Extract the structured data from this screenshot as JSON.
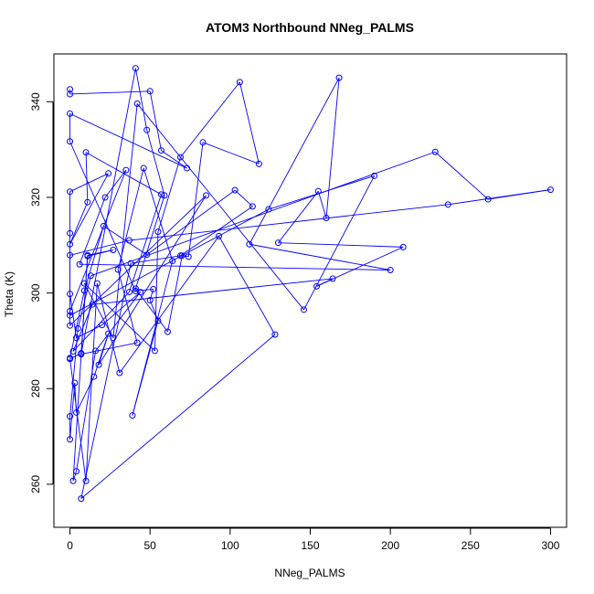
{
  "chart_data": {
    "type": "scatter",
    "title": "ATOM3 Northbound NNeg_PALMS",
    "xlabel": "NNeg_PALMS",
    "ylabel": "Theta (K)",
    "xlim": [
      -10,
      310
    ],
    "ylim": [
      251,
      350
    ],
    "x_ticks": [
      0,
      50,
      100,
      150,
      200,
      250,
      300
    ],
    "y_ticks": [
      260,
      280,
      300,
      320,
      340
    ],
    "grid": false,
    "legend": "none",
    "colors": {
      "series": "#0000ff",
      "axis": "#000000",
      "background": "#ffffff"
    },
    "series": [
      {
        "draw": "lines+points",
        "points": [
          [
            0,
            342.6
          ],
          [
            0,
            341.6
          ],
          [
            50,
            342.2
          ],
          [
            57,
            329.8
          ],
          [
            73,
            326.1
          ],
          [
            0,
            337.5
          ],
          [
            0,
            331.7
          ],
          [
            41,
            300.4
          ],
          [
            52,
            300.8
          ],
          [
            50,
            298.5
          ],
          [
            55,
            294.2
          ],
          [
            39,
            274.4
          ],
          [
            64,
            306.7
          ],
          [
            46,
            326.1
          ],
          [
            30,
            304.9
          ],
          [
            42,
            289.6
          ],
          [
            7,
            287.2
          ],
          [
            41,
            347.0
          ],
          [
            48,
            334.1
          ],
          [
            59,
            320.4
          ],
          [
            41,
            300.9
          ],
          [
            61,
            291.9
          ],
          [
            70,
            307.8
          ],
          [
            74,
            307.6
          ],
          [
            83,
            331.5
          ],
          [
            118,
            327.0
          ],
          [
            106,
            344.1
          ],
          [
            69,
            328.4
          ],
          [
            55,
            312.8
          ],
          [
            53,
            287.9
          ],
          [
            9,
            302.0
          ],
          [
            27,
            290.6
          ],
          [
            42,
            339.6
          ],
          [
            146,
            296.5
          ],
          [
            190,
            324.5
          ],
          [
            124,
            317.5
          ],
          [
            0,
            295.3
          ],
          [
            0,
            312.5
          ],
          [
            0,
            321.2
          ],
          [
            24,
            325.0
          ],
          [
            0,
            310.2
          ],
          [
            11,
            319.0
          ],
          [
            10,
            329.4
          ],
          [
            57,
            320.6
          ],
          [
            37,
            300.2
          ],
          [
            2,
            287.8
          ],
          [
            14,
            297.6
          ],
          [
            164,
            303.0
          ],
          [
            154,
            301.4
          ],
          [
            208,
            309.6
          ],
          [
            130,
            310.5
          ],
          [
            155,
            321.3
          ],
          [
            160,
            315.7
          ],
          [
            168,
            345.0
          ],
          [
            112,
            310.2
          ],
          [
            200,
            304.8
          ],
          [
            6,
            306.0
          ],
          [
            22,
            320.0
          ],
          [
            35,
            325.7
          ],
          [
            0,
            296.2
          ],
          [
            0,
            293.2
          ],
          [
            85,
            320.4
          ],
          [
            18,
            285.0
          ],
          [
            24,
            291.5
          ],
          [
            15,
            282.5
          ],
          [
            4,
            275.0
          ],
          [
            3,
            281.2
          ],
          [
            0,
            269.4
          ],
          [
            0,
            274.2
          ],
          [
            5,
            292.6
          ],
          [
            13,
            303.6
          ],
          [
            228,
            329.5
          ],
          [
            261,
            319.6
          ],
          [
            300,
            321.6
          ],
          [
            236,
            318.5
          ],
          [
            37,
            311.0
          ],
          [
            0,
            307.9
          ],
          [
            0,
            299.8
          ],
          [
            4,
            290.6
          ],
          [
            20,
            293.3
          ],
          [
            44,
            300.2
          ],
          [
            16,
            287.9
          ],
          [
            4,
            262.7
          ],
          [
            2,
            260.7
          ],
          [
            11,
            307.9
          ],
          [
            27,
            309.0
          ],
          [
            11,
            307.7
          ],
          [
            7,
            287.4
          ],
          [
            0,
            286.2
          ],
          [
            10,
            260.7
          ],
          [
            17,
            302.0
          ],
          [
            31,
            283.3
          ],
          [
            93,
            311.9
          ],
          [
            128,
            291.3
          ],
          [
            7,
            257.0
          ],
          [
            38,
            306.2
          ],
          [
            69,
            307.8
          ],
          [
            114,
            318.1
          ],
          [
            103,
            321.5
          ],
          [
            48,
            308.0
          ],
          [
            21,
            314.0
          ],
          [
            9,
            300.5
          ],
          [
            0,
            286.4
          ]
        ]
      }
    ]
  }
}
